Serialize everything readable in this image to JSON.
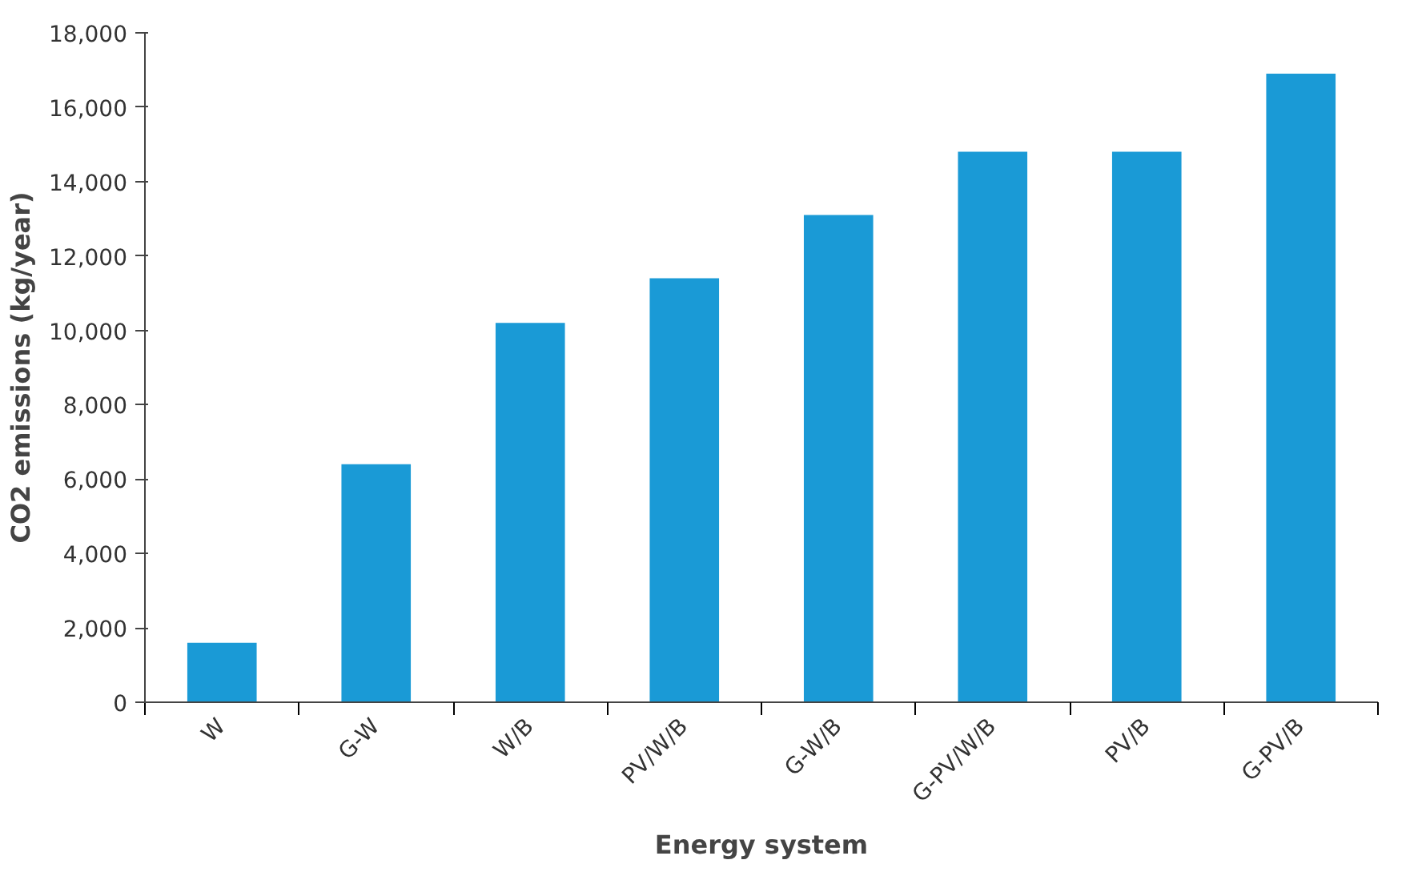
{
  "chart_data": {
    "type": "bar",
    "xlabel": "Energy system",
    "ylabel": "CO2 emissions (kg/year)",
    "categories": [
      "W",
      "G-W",
      "W/B",
      "PV/W/B",
      "G-W/B",
      "G-PV/W/B",
      "PV/B",
      "G-PV/B"
    ],
    "values": [
      1600,
      6400,
      10200,
      11400,
      13100,
      14800,
      14800,
      16900
    ],
    "color": "#1a9ad6",
    "ylim": [
      0,
      18000
    ],
    "yticks": [
      0,
      {
        "value": 2000,
        "label": "2,000"
      },
      {
        "value": 4000,
        "label": "4,000"
      },
      {
        "value": 6000,
        "label": "6,000"
      },
      {
        "value": 8000,
        "label": "8,000"
      },
      {
        "value": 10000,
        "label": "10,000"
      },
      {
        "value": 12000,
        "label": "12,000"
      },
      {
        "value": 14000,
        "label": "14,000"
      },
      {
        "value": 16000,
        "label": "16,000"
      },
      {
        "value": 18000,
        "label": "18,000"
      }
    ],
    "grid": false
  }
}
